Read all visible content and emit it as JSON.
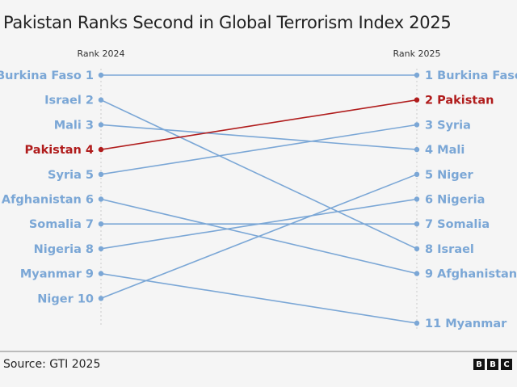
{
  "chart_data": {
    "type": "slope",
    "title": "Pakistan Ranks Second in Global Terrorism Index 2025",
    "left_header": "Rank 2024",
    "right_header": "Rank 2025",
    "series": [
      {
        "name": "Burkina Faso",
        "rank_2024": 1,
        "rank_2025": 1,
        "highlight": false
      },
      {
        "name": "Israel",
        "rank_2024": 2,
        "rank_2025": 8,
        "highlight": false
      },
      {
        "name": "Mali",
        "rank_2024": 3,
        "rank_2025": 4,
        "highlight": false
      },
      {
        "name": "Pakistan",
        "rank_2024": 4,
        "rank_2025": 2,
        "highlight": true
      },
      {
        "name": "Syria",
        "rank_2024": 5,
        "rank_2025": 3,
        "highlight": false
      },
      {
        "name": "Afghanistan",
        "rank_2024": 6,
        "rank_2025": 9,
        "highlight": false
      },
      {
        "name": "Somalia",
        "rank_2024": 7,
        "rank_2025": 7,
        "highlight": false
      },
      {
        "name": "Nigeria",
        "rank_2024": 8,
        "rank_2025": 6,
        "highlight": false
      },
      {
        "name": "Myanmar",
        "rank_2024": 9,
        "rank_2025": 11,
        "highlight": false
      },
      {
        "name": "Niger",
        "rank_2024": 10,
        "rank_2025": 5,
        "highlight": false
      }
    ],
    "colors": {
      "default": "#7ba7d6",
      "highlight": "#b01c1c"
    }
  },
  "footer": {
    "source": "Source: GTI 2025",
    "logo": [
      "B",
      "B",
      "C"
    ]
  }
}
